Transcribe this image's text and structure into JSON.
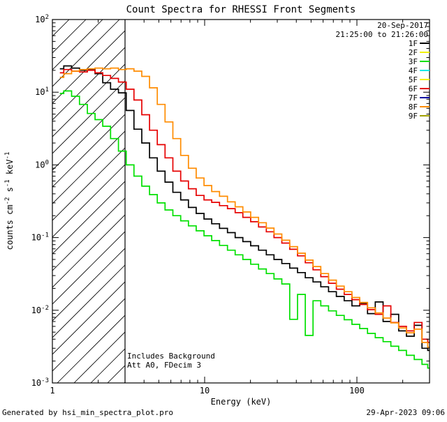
{
  "header": {
    "date": "20-Sep-2017",
    "time_range": "21:25:00 to 21:26:00"
  },
  "annotations": {
    "line1": "Includes Background",
    "line2": "Att A0, FDecim 3"
  },
  "footer": {
    "left": "Generated by hsi_min_spectra_plot.pro",
    "right": "29-Apr-2023 09:06"
  },
  "colors": {
    "date_text": "#000000",
    "time_text": "#000099",
    "legend_text": "#00b400",
    "frame": "#000000"
  },
  "legend": {
    "items": [
      {
        "label": "1F",
        "color": "#000000"
      },
      {
        "label": "2F",
        "color": "#f2f200"
      },
      {
        "label": "3F",
        "color": "#00e000"
      },
      {
        "label": "4F",
        "color": "#00e8e8"
      },
      {
        "label": "5F",
        "color": "#f2f200"
      },
      {
        "label": "6F",
        "color": "#e60000"
      },
      {
        "label": "7F",
        "color": "#0000a0"
      },
      {
        "label": "8F",
        "color": "#ff8c00"
      },
      {
        "label": "9F",
        "color": "#a0a000"
      }
    ]
  },
  "chart_data": {
    "type": "line",
    "title": "Count Spectra for RHESSI Front Segments",
    "xlabel": "Energy (keV)",
    "ylabel": "counts cm^-2 s^-1 keV^-1",
    "x_scale": "log",
    "y_scale": "log",
    "xlim": [
      1,
      300
    ],
    "ylim": [
      0.001,
      100
    ],
    "grid": false,
    "legend_position": "top-right",
    "x_ticks": [
      {
        "label": "1",
        "value": 1
      },
      {
        "label": "10",
        "value": 10
      },
      {
        "label": "100",
        "value": 100
      }
    ],
    "y_ticks": [
      {
        "label": "10^2",
        "value": 100
      },
      {
        "label": "10^1",
        "value": 10
      },
      {
        "label": "10^0",
        "value": 1
      },
      {
        "label": "10^-1",
        "value": 0.1
      },
      {
        "label": "10^-2",
        "value": 0.01
      },
      {
        "label": "10^-3",
        "value": 0.001
      }
    ],
    "masked_region": {
      "x0": 1,
      "x1": 3,
      "style": "diagonal-hatch"
    },
    "x": [
      1.12,
      1.26,
      1.42,
      1.6,
      1.8,
      2.02,
      2.27,
      2.56,
      2.88,
      3.24,
      3.64,
      4.1,
      4.61,
      5.18,
      5.83,
      6.56,
      7.38,
      8.3,
      9.34,
      10.5,
      11.8,
      13.3,
      15.0,
      16.8,
      18.9,
      21.3,
      24.0,
      26.9,
      30.3,
      34.1,
      38.4,
      43.2,
      48.6,
      54.6,
      61.4,
      69.1,
      77.8,
      87.5,
      98.4,
      110.7,
      124.5,
      140.1,
      157.6,
      177.3,
      199.5,
      224.4,
      252.4,
      284.0,
      300.0
    ],
    "series": [
      {
        "name": "3F",
        "color": "#00e000",
        "values": [
          9.6,
          10.4,
          8.8,
          6.8,
          5.1,
          4.2,
          3.4,
          2.3,
          1.55,
          1.0,
          0.7,
          0.51,
          0.39,
          0.3,
          0.24,
          0.2,
          0.17,
          0.145,
          0.124,
          0.106,
          0.091,
          0.078,
          0.067,
          0.058,
          0.05,
          0.043,
          0.037,
          0.032,
          0.027,
          0.023,
          0.0075,
          0.0165,
          0.0045,
          0.0135,
          0.0115,
          0.0098,
          0.0085,
          0.0074,
          0.0064,
          0.0056,
          0.0048,
          0.0042,
          0.0037,
          0.0032,
          0.0028,
          0.0024,
          0.0021,
          0.0018,
          0.0016
        ]
      },
      {
        "name": "1F",
        "color": "#000000",
        "values": [
          21,
          23,
          21.5,
          20,
          20.5,
          18,
          13.5,
          11,
          9.8,
          5.6,
          3.1,
          2.0,
          1.25,
          0.82,
          0.58,
          0.42,
          0.33,
          0.26,
          0.215,
          0.18,
          0.155,
          0.134,
          0.117,
          0.1,
          0.088,
          0.077,
          0.067,
          0.058,
          0.05,
          0.044,
          0.038,
          0.033,
          0.028,
          0.0245,
          0.021,
          0.018,
          0.0155,
          0.0135,
          0.0115,
          0.0125,
          0.009,
          0.013,
          0.007,
          0.0088,
          0.0052,
          0.0044,
          0.0062,
          0.003,
          0.0028
        ]
      },
      {
        "name": "6F",
        "color": "#e60000",
        "values": [
          18.5,
          20.5,
          19.5,
          19,
          20,
          18.5,
          17,
          15.5,
          13.8,
          11,
          7.8,
          4.9,
          3.0,
          1.9,
          1.25,
          0.82,
          0.6,
          0.47,
          0.38,
          0.33,
          0.305,
          0.275,
          0.25,
          0.22,
          0.19,
          0.165,
          0.14,
          0.12,
          0.1,
          0.084,
          0.069,
          0.056,
          0.045,
          0.036,
          0.029,
          0.0235,
          0.0195,
          0.0165,
          0.014,
          0.012,
          0.0102,
          0.0088,
          0.0115,
          0.0068,
          0.006,
          0.0052,
          0.0068,
          0.004,
          0.0036
        ]
      },
      {
        "name": "8F",
        "color": "#ff8c00",
        "values": [
          16,
          18,
          19.5,
          20.5,
          21,
          21.5,
          21,
          21.5,
          20.5,
          21,
          19.5,
          16.5,
          11.5,
          6.8,
          3.9,
          2.3,
          1.35,
          0.9,
          0.66,
          0.52,
          0.43,
          0.37,
          0.31,
          0.265,
          0.225,
          0.19,
          0.16,
          0.135,
          0.112,
          0.092,
          0.075,
          0.061,
          0.049,
          0.04,
          0.032,
          0.026,
          0.0215,
          0.018,
          0.015,
          0.0128,
          0.0108,
          0.0092,
          0.0078,
          0.0067,
          0.0057,
          0.0049,
          0.0055,
          0.0036,
          0.0031
        ]
      }
    ]
  }
}
